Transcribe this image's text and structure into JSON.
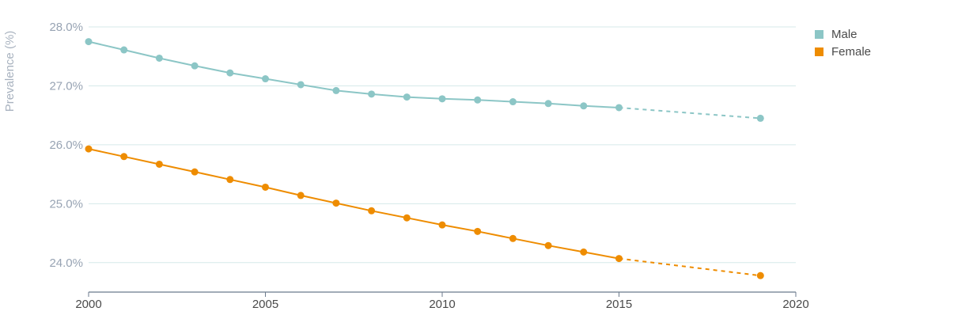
{
  "chart_data": {
    "type": "line",
    "title": "",
    "xlabel": "",
    "ylabel": "Prevalence (%)",
    "xlim": [
      2000,
      2020
    ],
    "ylim": [
      23.5,
      28.0
    ],
    "x_ticks": [
      2000,
      2005,
      2010,
      2015,
      2020
    ],
    "y_ticks": [
      24.0,
      25.0,
      26.0,
      27.0,
      28.0
    ],
    "y_tick_labels": [
      "24.0%",
      "25.0%",
      "26.0%",
      "27.0%",
      "28.0%"
    ],
    "grid": true,
    "legend_position": "top-right",
    "series": [
      {
        "name": "Male",
        "color": "#8cc6c6",
        "x": [
          2000,
          2001,
          2002,
          2003,
          2004,
          2005,
          2006,
          2007,
          2008,
          2009,
          2010,
          2011,
          2012,
          2013,
          2014,
          2015,
          2019
        ],
        "values": [
          27.75,
          27.61,
          27.47,
          27.34,
          27.22,
          27.12,
          27.02,
          26.92,
          26.86,
          26.81,
          26.78,
          26.76,
          26.73,
          26.7,
          26.66,
          26.63,
          26.45
        ],
        "projected_from_x": 2015
      },
      {
        "name": "Female",
        "color": "#ee8c00",
        "x": [
          2000,
          2001,
          2002,
          2003,
          2004,
          2005,
          2006,
          2007,
          2008,
          2009,
          2010,
          2011,
          2012,
          2013,
          2014,
          2015,
          2019
        ],
        "values": [
          25.93,
          25.8,
          25.67,
          25.54,
          25.41,
          25.28,
          25.14,
          25.01,
          24.88,
          24.76,
          24.64,
          24.53,
          24.41,
          24.29,
          24.18,
          24.07,
          23.78
        ],
        "projected_from_x": 2015
      }
    ]
  }
}
